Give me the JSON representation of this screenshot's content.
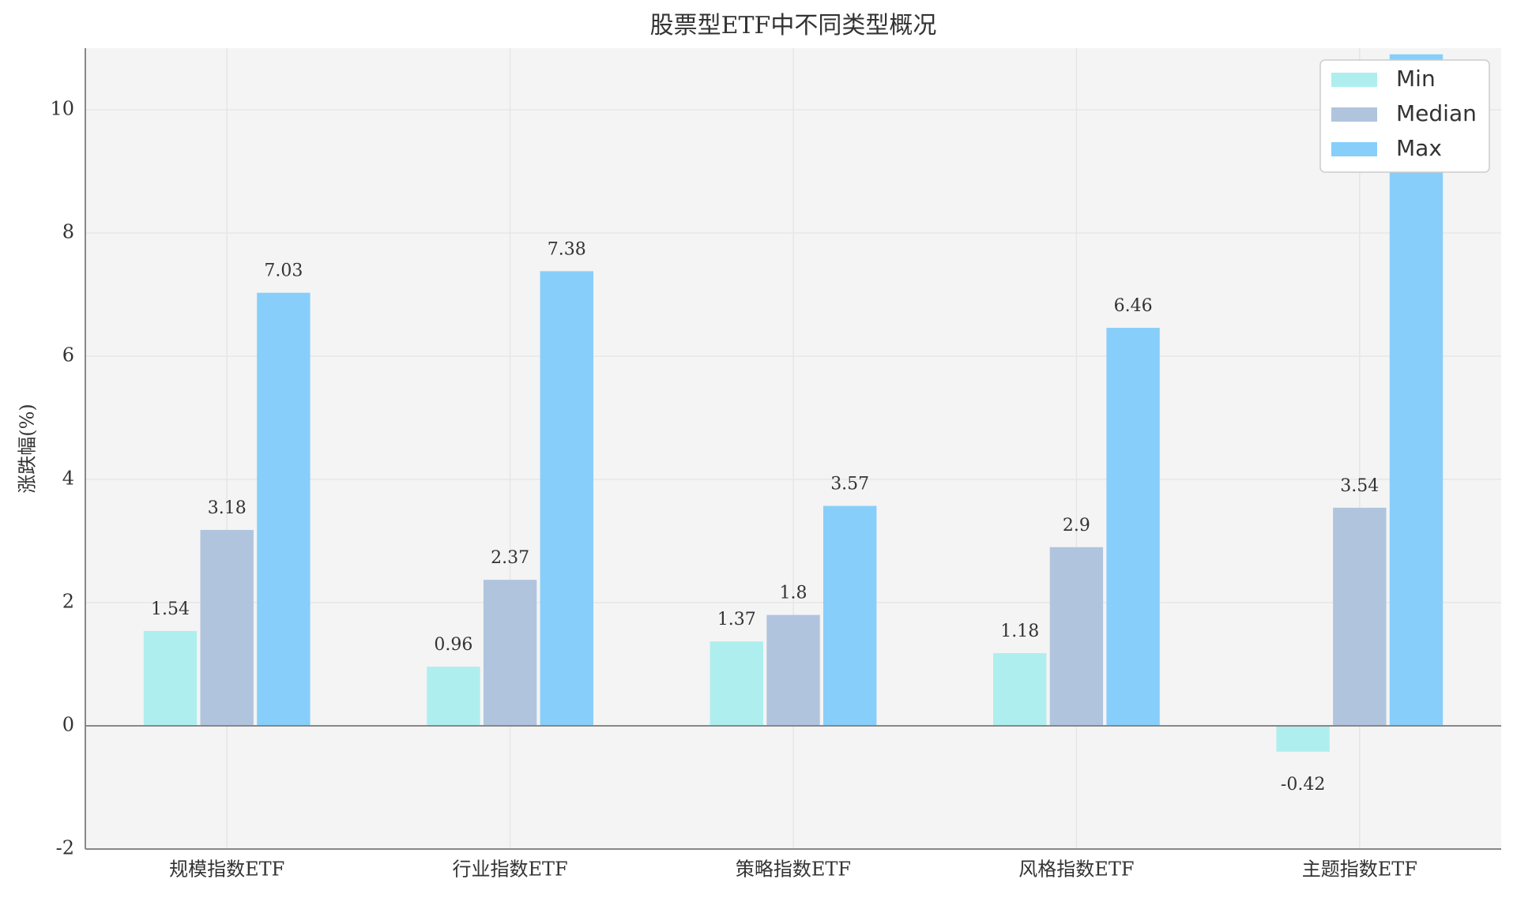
{
  "chart_data": {
    "type": "bar",
    "title": "股票型ETF中不同类型概况",
    "y_label": "涨跌幅(%)",
    "categories": [
      "规模指数ETF",
      "行业指数ETF",
      "策略指数ETF",
      "风格指数ETF",
      "主题指数ETF"
    ],
    "series": [
      {
        "name": "Min",
        "color": "#aeeeee",
        "values": [
          1.54,
          0.96,
          1.37,
          1.18,
          -0.42
        ]
      },
      {
        "name": "Median",
        "color": "#b0c4de",
        "values": [
          3.18,
          2.37,
          1.8,
          2.9,
          3.54
        ]
      },
      {
        "name": "Max",
        "color": "#87cefa",
        "values": [
          7.03,
          7.38,
          3.57,
          6.46,
          10.9
        ]
      }
    ],
    "ylim": [
      -2,
      11
    ],
    "yticks": [
      -2,
      0,
      2,
      4,
      6,
      8,
      10
    ],
    "grid": true,
    "legend": "upper right"
  }
}
